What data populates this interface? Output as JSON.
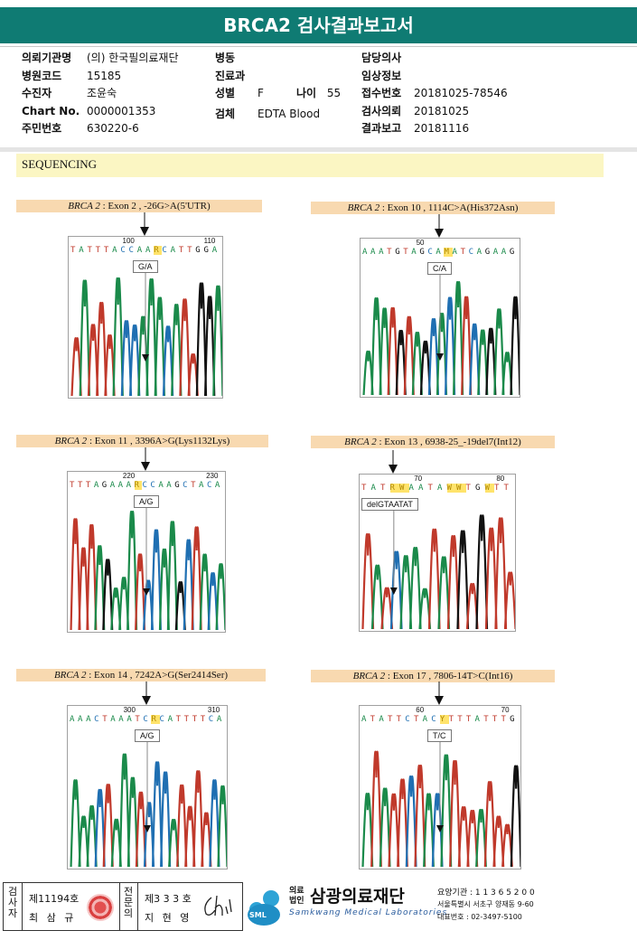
{
  "title": "BRCA2 검사결과보고서",
  "info": {
    "col1": [
      {
        "key": "의뢰기관명",
        "value": "(의) 한국필의료재단"
      },
      {
        "key": "병원코드",
        "value": "15185"
      },
      {
        "key": "수진자",
        "value": "조윤숙"
      },
      {
        "key": "Chart No.",
        "value": "0000001353"
      },
      {
        "key": "주민번호",
        "value": "630220-6"
      }
    ],
    "col2": [
      {
        "key": "병동",
        "value": ""
      },
      {
        "key": "진료과",
        "value": ""
      },
      {
        "key": "성별",
        "value": "F"
      },
      {
        "key": "검체",
        "value": "EDTA Blood"
      }
    ],
    "age_key": "나이",
    "age_value": "55",
    "col3": [
      {
        "key": "담당의사",
        "value": ""
      },
      {
        "key": "임상정보",
        "value": ""
      },
      {
        "key": "접수번호",
        "value": "20181025-78546"
      },
      {
        "key": "검사의뢰",
        "value": "20181025"
      },
      {
        "key": "결과보고",
        "value": "20181116"
      }
    ]
  },
  "section_title": "SEQUENCING",
  "panels": [
    {
      "gene": "BRCA 2",
      "desc": " : Exon 2 , -26G>A(5'UTR)",
      "bases": "TATTTACCAARCATTGGA",
      "pos_left": "100",
      "pos_right": "110",
      "call": "G/A",
      "colors": [
        "#c0392b",
        "#1f6fb2",
        "#1a8a4a",
        "#111111"
      ]
    },
    {
      "gene": "BRCA 2",
      "desc": " : Exon 10 , 1114C>A(His372Asn)",
      "bases": "AAATGTAGCAMATCAGAAG",
      "pos_left": "50",
      "pos_right": "",
      "call": "C/A",
      "colors": [
        "#1a8a4a",
        "#c0392b",
        "#1f6fb2",
        "#111111"
      ]
    },
    {
      "gene": "BRCA 2",
      "desc": " : Exon 11 , 3396A>G(Lys1132Lys)",
      "bases": "TTTAGAAARCCAAGCTACA",
      "pos_left": "220",
      "pos_right": "230",
      "call": "A/G",
      "colors": [
        "#c0392b",
        "#1a8a4a",
        "#1f6fb2",
        "#111111"
      ]
    },
    {
      "gene": "BRCA 2",
      "desc": " : Exon 13 , 6938-25_-19del7(Int12)",
      "bases": "TATRWAATAWWTGWTT",
      "pos_left": "70",
      "pos_right": "80",
      "call": "delGTAATAT",
      "colors": [
        "#1a8a4a",
        "#c0392b",
        "#111111",
        "#1f6fb2"
      ]
    },
    {
      "gene": "BRCA 2",
      "desc": " : Exon 14 , 7242A>G(Ser2414Ser)",
      "bases": "AAACTAAATCRCATTTTCA",
      "pos_left": "300",
      "pos_right": "310",
      "call": "A/G",
      "colors": [
        "#1a8a4a",
        "#c0392b",
        "#1f6fb2",
        "#111111"
      ]
    },
    {
      "gene": "BRCA 2",
      "desc": " : Exon 17 , 7806-14T>C(Int16)",
      "bases": "ATATTCTACYTTTATTTG",
      "pos_left": "60",
      "pos_right": "70",
      "call": "T/C",
      "colors": [
        "#c0392b",
        "#1a8a4a",
        "#1f6fb2",
        "#111111"
      ]
    }
  ],
  "footer": {
    "label1": "검사자",
    "no1": "제11194호",
    "name1": "최 삼 규",
    "label2": "전문의",
    "no2": "제3 3 3 호",
    "name2": "지 현 영",
    "logo_text": "SML",
    "org_prefix": "의료법인",
    "org_name": "삼광의료재단",
    "org_en": "Samkwang Medical Laboratories",
    "org_code": "요양기관 : 1 1 3 6 5 2 0 0",
    "org_addr": "서울특별시 서초구 양재동 9-60",
    "org_tel": "대표번호 : 02-3497-5100"
  }
}
